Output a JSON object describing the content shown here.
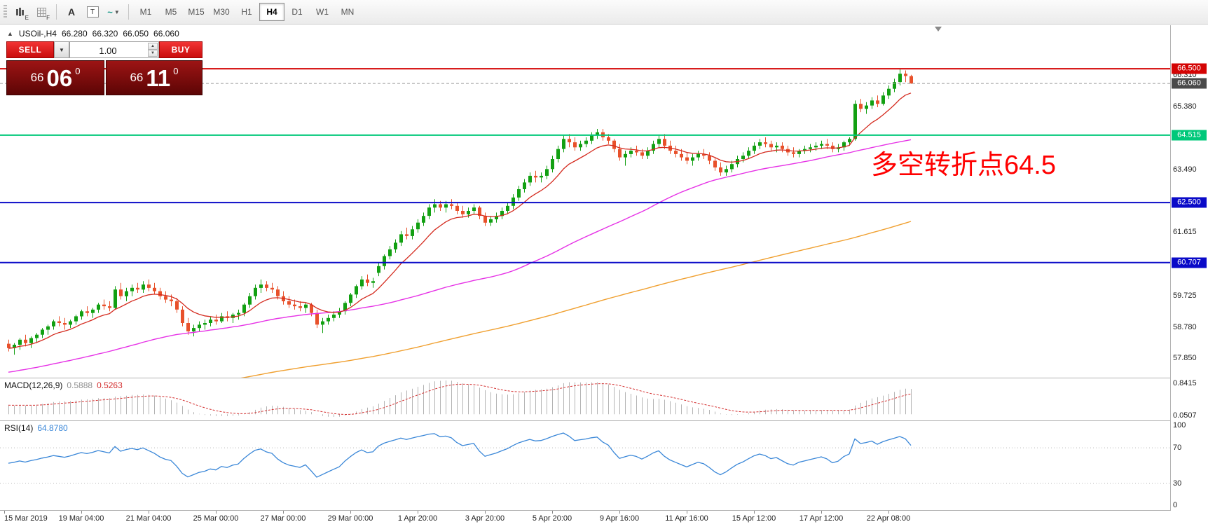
{
  "toolbar": {
    "icons": [
      {
        "name": "chart-tool-icon-e",
        "sub": "E"
      },
      {
        "name": "grid-tool-icon-f",
        "sub": "F"
      },
      {
        "name": "text-label-icon",
        "glyph": "A"
      },
      {
        "name": "text-box-icon",
        "glyph": "T"
      },
      {
        "name": "objects-dropdown-icon",
        "glyph": "~",
        "caret": "▼"
      }
    ],
    "timeframes": [
      "M1",
      "M5",
      "M15",
      "M30",
      "H1",
      "H4",
      "D1",
      "W1",
      "MN"
    ],
    "active_timeframe": "H4"
  },
  "quote_header": {
    "toggle_icon": "▲",
    "symbol_period": "USOil-,H4",
    "open": "66.280",
    "high": "66.320",
    "low": "66.050",
    "close": "66.060"
  },
  "trade_panel": {
    "sell_label": "SELL",
    "buy_label": "BUY",
    "volume": "1.00",
    "dropdown_icon": "▼",
    "spin_up": "▲",
    "spin_down": "▼",
    "sell_price_small": "66",
    "sell_price_big": "06",
    "sell_price_sup": "0",
    "buy_price_small": "66",
    "buy_price_big": "11",
    "buy_price_sup": "0"
  },
  "annotation": {
    "text": "多空转折点64.5",
    "color": "#ff0000"
  },
  "price_axis": {
    "plain_labels": [
      {
        "text": "66.310",
        "price": 66.31
      },
      {
        "text": "65.380",
        "price": 65.38
      },
      {
        "text": "63.490",
        "price": 63.49
      },
      {
        "text": "61.615",
        "price": 61.615
      },
      {
        "text": "59.725",
        "price": 59.725
      },
      {
        "text": "58.780",
        "price": 58.78
      },
      {
        "text": "57.850",
        "price": 57.85
      }
    ],
    "level_tags": [
      {
        "text": "66.500",
        "price": 66.5,
        "bg": "#d40404",
        "line": "solid",
        "width": 2
      },
      {
        "text": "66.060",
        "price": 66.06,
        "bg": "#4a4a4a",
        "line": "dashed",
        "width": 1,
        "line_color": "#9a9a9a"
      },
      {
        "text": "64.515",
        "price": 64.515,
        "bg": "#00c87a",
        "line": "solid",
        "width": 2
      },
      {
        "text": "62.500",
        "price": 62.5,
        "bg": "#0a0ac8",
        "line": "solid",
        "width": 2
      },
      {
        "text": "60.707",
        "price": 60.707,
        "bg": "#0a0ac8",
        "line": "solid",
        "width": 2
      }
    ]
  },
  "indicators": {
    "macd": {
      "label": "MACD(12,26,9)",
      "value1": "0.5888",
      "value2": "0.5263",
      "axis_top": "0.8415",
      "axis_bottom": "0.0507"
    },
    "rsi": {
      "label": "RSI(14)",
      "value": "64.8780",
      "levels": [
        {
          "text": "100",
          "v": 100,
          "dotted": false
        },
        {
          "text": "70",
          "v": 70,
          "dotted": true
        },
        {
          "text": "30",
          "v": 30,
          "dotted": true
        },
        {
          "text": "0",
          "v": 0,
          "dotted": false
        }
      ]
    }
  },
  "time_axis": {
    "labels": [
      "15 Mar 2019",
      "19 Mar 04:00",
      "21 Mar 04:00",
      "25 Mar 00:00",
      "27 Mar 00:00",
      "29 Mar 00:00",
      "1 Apr 20:00",
      "3 Apr 20:00",
      "5 Apr 20:00",
      "9 Apr 16:00",
      "11 Apr 16:00",
      "15 Apr 12:00",
      "17 Apr 12:00",
      "22 Apr 08:00"
    ]
  },
  "chart_data": {
    "type": "candlestick",
    "symbol": "USOil-",
    "period": "H4",
    "title": "USOil-,H4",
    "price_range": [
      57.27,
      67.8
    ],
    "levels": [
      66.5,
      64.515,
      62.5,
      60.707
    ],
    "current_bid": 66.06,
    "colors": {
      "up": "#12a012",
      "down": "#e8512b",
      "ma_fast": "#d42a1e",
      "ma_mid": "#e632e6",
      "ma_slow": "#f0a030",
      "macd_hist": "#b4b4b4",
      "macd_signal": "#d43030",
      "rsi_line": "#3a87d8",
      "level_red": "#d40404",
      "level_green": "#00c87a",
      "level_blue": "#0a0ac8"
    },
    "candles": [
      [
        58.28,
        58.4,
        58.05,
        58.15
      ],
      [
        58.15,
        58.3,
        57.95,
        58.25
      ],
      [
        58.25,
        58.45,
        58.1,
        58.4
      ],
      [
        58.4,
        58.55,
        58.2,
        58.3
      ],
      [
        58.3,
        58.5,
        58.15,
        58.45
      ],
      [
        58.45,
        58.6,
        58.3,
        58.55
      ],
      [
        58.55,
        58.75,
        58.45,
        58.7
      ],
      [
        58.7,
        58.85,
        58.55,
        58.8
      ],
      [
        58.8,
        59.0,
        58.7,
        58.95
      ],
      [
        58.95,
        59.1,
        58.8,
        58.9
      ],
      [
        58.9,
        59.05,
        58.7,
        58.85
      ],
      [
        58.85,
        59.0,
        58.75,
        58.95
      ],
      [
        58.95,
        59.15,
        58.85,
        59.1
      ],
      [
        59.1,
        59.3,
        59.0,
        59.25
      ],
      [
        59.25,
        59.4,
        59.1,
        59.2
      ],
      [
        59.2,
        59.35,
        59.05,
        59.3
      ],
      [
        59.3,
        59.5,
        59.2,
        59.45
      ],
      [
        59.45,
        59.6,
        59.3,
        59.4
      ],
      [
        59.4,
        59.55,
        59.25,
        59.35
      ],
      [
        59.35,
        60.0,
        59.3,
        59.9
      ],
      [
        59.9,
        60.1,
        59.6,
        59.7
      ],
      [
        59.7,
        59.95,
        59.55,
        59.85
      ],
      [
        59.85,
        60.05,
        59.7,
        59.95
      ],
      [
        59.95,
        60.1,
        59.8,
        59.9
      ],
      [
        59.9,
        60.15,
        59.8,
        60.05
      ],
      [
        60.05,
        60.2,
        59.85,
        59.95
      ],
      [
        59.95,
        60.1,
        59.75,
        59.85
      ],
      [
        59.85,
        59.95,
        59.6,
        59.7
      ],
      [
        59.7,
        59.85,
        59.5,
        59.6
      ],
      [
        59.6,
        59.75,
        59.4,
        59.55
      ],
      [
        59.55,
        59.65,
        59.2,
        59.3
      ],
      [
        59.3,
        59.4,
        58.8,
        58.9
      ],
      [
        58.9,
        59.05,
        58.55,
        58.65
      ],
      [
        58.65,
        58.85,
        58.5,
        58.75
      ],
      [
        58.75,
        58.95,
        58.65,
        58.85
      ],
      [
        58.85,
        59.0,
        58.7,
        58.9
      ],
      [
        58.9,
        59.1,
        58.8,
        59.0
      ],
      [
        59.0,
        59.15,
        58.85,
        58.95
      ],
      [
        58.95,
        59.2,
        58.9,
        59.1
      ],
      [
        59.1,
        59.25,
        58.95,
        59.05
      ],
      [
        59.05,
        59.2,
        58.9,
        59.15
      ],
      [
        59.15,
        59.3,
        59.0,
        59.2
      ],
      [
        59.2,
        59.5,
        59.1,
        59.45
      ],
      [
        59.45,
        59.8,
        59.35,
        59.7
      ],
      [
        59.7,
        60.05,
        59.6,
        59.95
      ],
      [
        59.95,
        60.2,
        59.8,
        60.05
      ],
      [
        60.05,
        60.15,
        59.85,
        59.95
      ],
      [
        59.95,
        60.1,
        59.8,
        59.9
      ],
      [
        59.9,
        60.0,
        59.6,
        59.7
      ],
      [
        59.7,
        59.85,
        59.45,
        59.55
      ],
      [
        59.55,
        59.7,
        59.35,
        59.45
      ],
      [
        59.45,
        59.6,
        59.3,
        59.4
      ],
      [
        59.4,
        59.55,
        59.25,
        59.35
      ],
      [
        59.35,
        59.5,
        59.2,
        59.45
      ],
      [
        59.45,
        59.5,
        59.1,
        59.2
      ],
      [
        59.2,
        59.3,
        58.75,
        58.85
      ],
      [
        58.85,
        59.05,
        58.6,
        58.95
      ],
      [
        58.95,
        59.15,
        58.85,
        59.05
      ],
      [
        59.05,
        59.25,
        58.95,
        59.15
      ],
      [
        59.15,
        59.35,
        59.05,
        59.25
      ],
      [
        59.25,
        59.55,
        59.15,
        59.5
      ],
      [
        59.5,
        59.8,
        59.4,
        59.75
      ],
      [
        59.75,
        60.05,
        59.65,
        60.0
      ],
      [
        60.0,
        60.3,
        59.9,
        60.2
      ],
      [
        60.2,
        60.35,
        60.0,
        60.1
      ],
      [
        60.1,
        60.25,
        59.95,
        60.15
      ],
      [
        60.4,
        60.7,
        60.3,
        60.6
      ],
      [
        60.6,
        60.95,
        60.5,
        60.9
      ],
      [
        60.9,
        61.2,
        60.8,
        61.1
      ],
      [
        61.1,
        61.4,
        61.0,
        61.3
      ],
      [
        61.3,
        61.65,
        61.2,
        61.55
      ],
      [
        61.55,
        61.75,
        61.4,
        61.5
      ],
      [
        61.5,
        61.8,
        61.4,
        61.7
      ],
      [
        61.7,
        62.0,
        61.6,
        61.9
      ],
      [
        61.9,
        62.2,
        61.8,
        62.1
      ],
      [
        62.1,
        62.45,
        62.0,
        62.35
      ],
      [
        62.35,
        62.6,
        62.2,
        62.45
      ],
      [
        62.45,
        62.55,
        62.25,
        62.35
      ],
      [
        62.35,
        62.55,
        62.2,
        62.45
      ],
      [
        62.45,
        62.6,
        62.3,
        62.4
      ],
      [
        62.4,
        62.5,
        62.15,
        62.25
      ],
      [
        62.25,
        62.4,
        62.05,
        62.15
      ],
      [
        62.15,
        62.35,
        62.05,
        62.25
      ],
      [
        62.25,
        62.45,
        62.15,
        62.35
      ],
      [
        62.35,
        62.4,
        62.0,
        62.1
      ],
      [
        62.1,
        62.2,
        61.8,
        61.9
      ],
      [
        61.9,
        62.1,
        61.8,
        62.0
      ],
      [
        62.0,
        62.2,
        61.9,
        62.1
      ],
      [
        62.1,
        62.35,
        62.0,
        62.25
      ],
      [
        62.25,
        62.5,
        62.15,
        62.4
      ],
      [
        62.4,
        62.75,
        62.3,
        62.65
      ],
      [
        62.65,
        63.0,
        62.55,
        62.9
      ],
      [
        62.9,
        63.2,
        62.8,
        63.1
      ],
      [
        63.1,
        63.4,
        63.0,
        63.3
      ],
      [
        63.3,
        63.45,
        63.1,
        63.25
      ],
      [
        63.25,
        63.4,
        63.1,
        63.3
      ],
      [
        63.3,
        63.6,
        63.2,
        63.5
      ],
      [
        63.5,
        63.9,
        63.4,
        63.8
      ],
      [
        63.8,
        64.2,
        63.7,
        64.1
      ],
      [
        64.1,
        64.5,
        64.0,
        64.4
      ],
      [
        64.4,
        64.55,
        64.15,
        64.3
      ],
      [
        64.3,
        64.45,
        64.05,
        64.15
      ],
      [
        64.15,
        64.35,
        64.05,
        64.25
      ],
      [
        64.25,
        64.45,
        64.15,
        64.35
      ],
      [
        64.35,
        64.6,
        64.25,
        64.5
      ],
      [
        64.5,
        64.7,
        64.4,
        64.6
      ],
      [
        64.6,
        64.7,
        64.35,
        64.45
      ],
      [
        64.45,
        64.55,
        64.25,
        64.35
      ],
      [
        64.35,
        64.4,
        64.0,
        64.1
      ],
      [
        64.1,
        64.25,
        63.75,
        63.85
      ],
      [
        63.85,
        64.05,
        63.6,
        63.95
      ],
      [
        63.95,
        64.15,
        63.85,
        64.05
      ],
      [
        64.05,
        64.2,
        63.9,
        64.0
      ],
      [
        64.0,
        64.1,
        63.8,
        63.9
      ],
      [
        63.9,
        64.15,
        63.8,
        64.05
      ],
      [
        64.05,
        64.35,
        63.95,
        64.25
      ],
      [
        64.25,
        64.5,
        64.15,
        64.4
      ],
      [
        64.4,
        64.55,
        64.1,
        64.2
      ],
      [
        64.2,
        64.35,
        63.95,
        64.05
      ],
      [
        64.05,
        64.2,
        63.85,
        63.95
      ],
      [
        63.95,
        64.1,
        63.75,
        63.85
      ],
      [
        63.85,
        64.0,
        63.65,
        63.75
      ],
      [
        63.75,
        63.95,
        63.6,
        63.85
      ],
      [
        63.85,
        64.05,
        63.75,
        63.95
      ],
      [
        63.95,
        64.1,
        63.8,
        63.9
      ],
      [
        63.9,
        64.0,
        63.65,
        63.75
      ],
      [
        63.75,
        63.85,
        63.45,
        63.55
      ],
      [
        63.55,
        63.7,
        63.3,
        63.4
      ],
      [
        63.4,
        63.6,
        63.3,
        63.5
      ],
      [
        63.5,
        63.75,
        63.4,
        63.65
      ],
      [
        63.65,
        63.9,
        63.55,
        63.8
      ],
      [
        63.8,
        64.0,
        63.7,
        63.9
      ],
      [
        63.9,
        64.15,
        63.8,
        64.05
      ],
      [
        64.05,
        64.3,
        63.95,
        64.2
      ],
      [
        64.2,
        64.4,
        64.1,
        64.3
      ],
      [
        64.3,
        64.45,
        64.15,
        64.25
      ],
      [
        64.25,
        64.35,
        64.05,
        64.15
      ],
      [
        64.15,
        64.3,
        64.0,
        64.2
      ],
      [
        64.2,
        64.3,
        64.0,
        64.1
      ],
      [
        64.1,
        64.2,
        63.9,
        64.0
      ],
      [
        64.0,
        64.15,
        63.85,
        63.95
      ],
      [
        63.95,
        64.1,
        63.85,
        64.05
      ],
      [
        64.05,
        64.2,
        63.95,
        64.1
      ],
      [
        64.1,
        64.25,
        64.0,
        64.15
      ],
      [
        64.15,
        64.3,
        64.05,
        64.2
      ],
      [
        64.2,
        64.35,
        64.1,
        64.25
      ],
      [
        64.25,
        64.4,
        64.1,
        64.2
      ],
      [
        64.2,
        64.3,
        64.0,
        64.1
      ],
      [
        64.1,
        64.25,
        64.0,
        64.15
      ],
      [
        64.15,
        64.35,
        64.05,
        64.3
      ],
      [
        64.3,
        64.45,
        64.2,
        64.4
      ],
      [
        64.4,
        65.55,
        64.35,
        65.45
      ],
      [
        65.45,
        65.6,
        65.2,
        65.3
      ],
      [
        65.3,
        65.5,
        65.15,
        65.4
      ],
      [
        65.4,
        65.65,
        65.3,
        65.55
      ],
      [
        65.55,
        65.7,
        65.35,
        65.45
      ],
      [
        65.45,
        65.8,
        65.4,
        65.7
      ],
      [
        65.7,
        66.0,
        65.6,
        65.9
      ],
      [
        65.9,
        66.2,
        65.8,
        66.1
      ],
      [
        66.1,
        66.5,
        66.0,
        66.35
      ],
      [
        66.35,
        66.45,
        66.1,
        66.28
      ],
      [
        66.28,
        66.32,
        66.05,
        66.06
      ]
    ]
  }
}
